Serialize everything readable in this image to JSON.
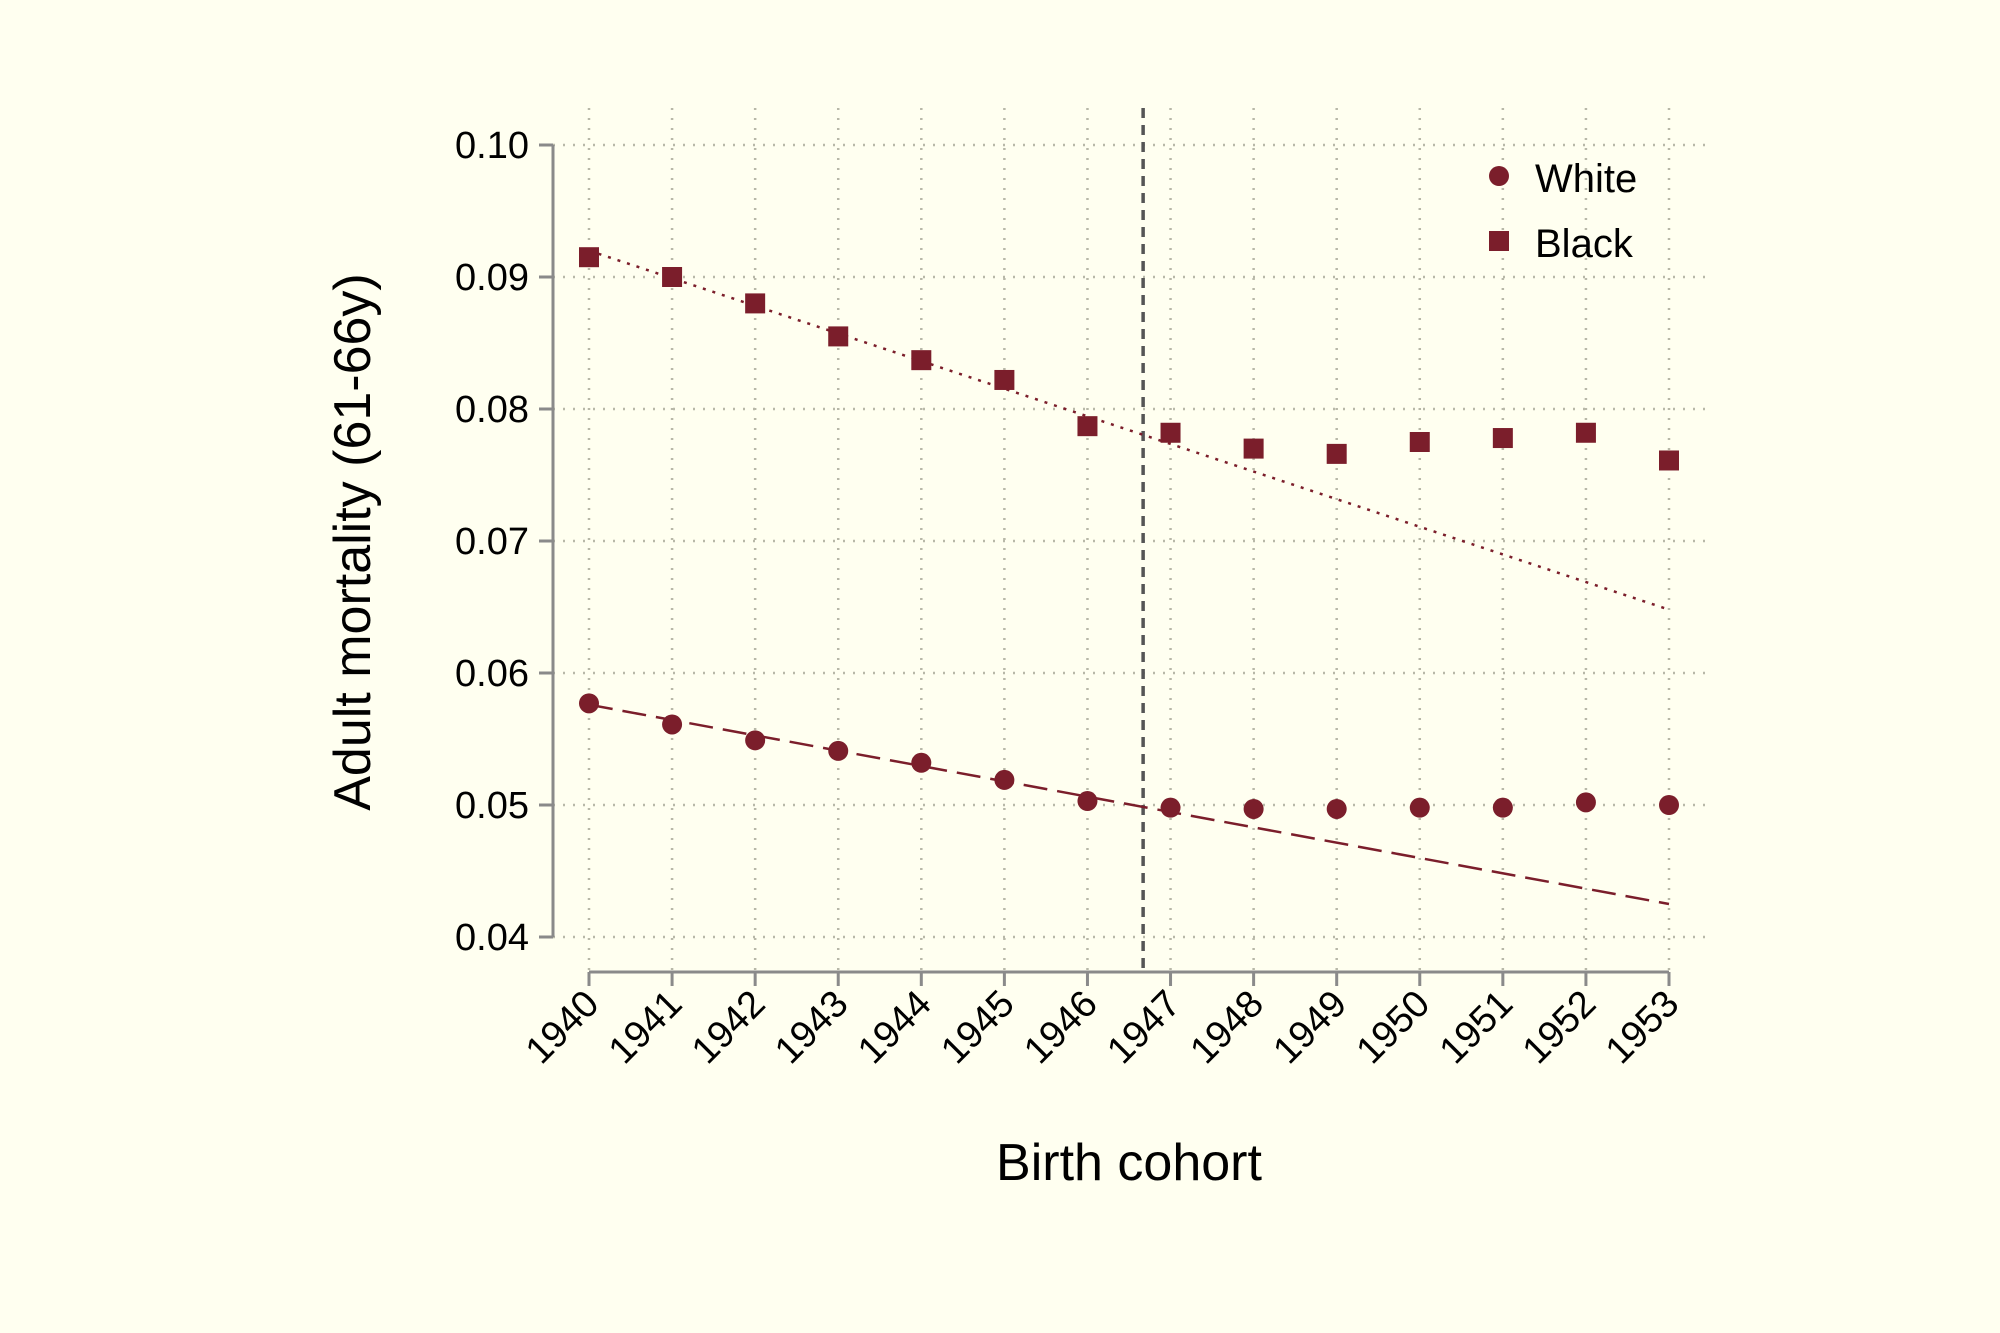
{
  "chart_data": {
    "type": "scatter",
    "title": "",
    "xlabel": "Birth cohort",
    "ylabel": "Adult mortality (61-66y)",
    "x": [
      1940,
      1941,
      1942,
      1943,
      1944,
      1945,
      1946,
      1947,
      1948,
      1949,
      1950,
      1951,
      1952,
      1953
    ],
    "x_tick_labels": [
      "1940",
      "1941",
      "1942",
      "1943",
      "1944",
      "1945",
      "1946",
      "1947",
      "1948",
      "1949",
      "1950",
      "1951",
      "1952",
      "1953"
    ],
    "xlim": [
      1940,
      1953
    ],
    "ylim": [
      0.04,
      0.1
    ],
    "y_ticks": [
      0.04,
      0.05,
      0.06,
      0.07,
      0.08,
      0.09,
      0.1
    ],
    "y_tick_labels": [
      "0.04",
      "0.05",
      "0.06",
      "0.07",
      "0.08",
      "0.09",
      "0.10"
    ],
    "grid": true,
    "legend_position": "top-right",
    "series": [
      {
        "name": "White",
        "marker": "circle",
        "color": "#7b1e2b",
        "values": [
          0.0577,
          0.0561,
          0.0549,
          0.0541,
          0.0532,
          0.0519,
          0.0503,
          0.0498,
          0.0497,
          0.0497,
          0.0498,
          0.0498,
          0.0502,
          0.05
        ]
      },
      {
        "name": "Black",
        "marker": "square",
        "color": "#7b1e2b",
        "values": [
          0.0915,
          0.09,
          0.088,
          0.0855,
          0.0837,
          0.0822,
          0.0787,
          0.0782,
          0.077,
          0.0766,
          0.0775,
          0.0778,
          0.0782,
          0.0761
        ]
      }
    ],
    "trend_lines": [
      {
        "series": "White",
        "style": "dashed",
        "x": [
          1940,
          1953
        ],
        "y": [
          0.0576,
          0.0425
        ]
      },
      {
        "series": "Black",
        "style": "dotted",
        "x": [
          1940,
          1953
        ],
        "y": [
          0.092,
          0.0648
        ]
      }
    ],
    "reference_line": {
      "x": 1946.67,
      "style": "dashed",
      "color": "#555555"
    }
  }
}
